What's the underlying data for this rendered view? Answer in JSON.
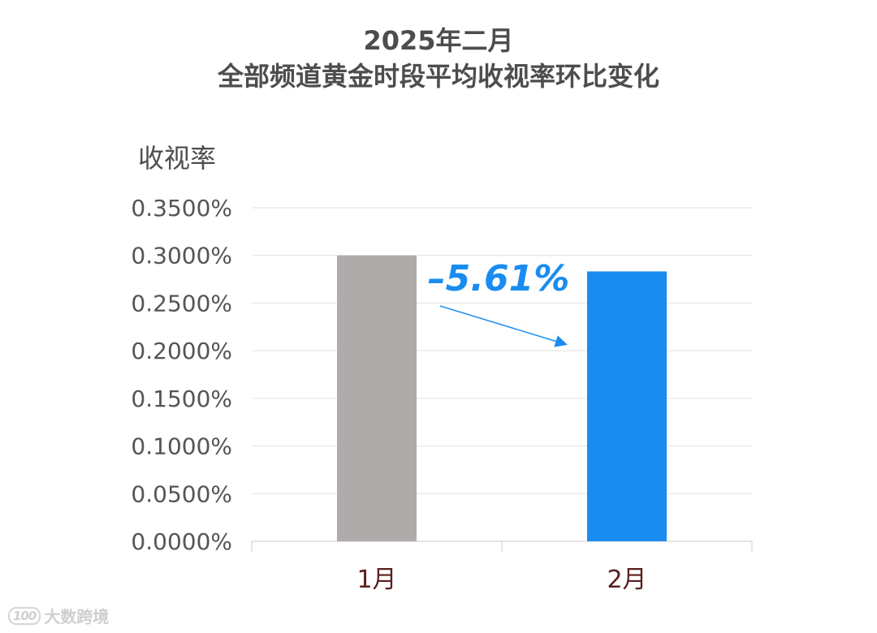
{
  "chart_data": {
    "type": "bar",
    "title": "2025年二月",
    "subtitle": "全部频道黄金时段平均收视率环比变化",
    "ylabel": "收视率",
    "xlabel": "",
    "categories": [
      "1月",
      "2月"
    ],
    "values": [
      0.3,
      0.2832
    ],
    "ylim": [
      0,
      0.35
    ],
    "yticks": [
      "0.0000%",
      "0.0500%",
      "0.1000%",
      "0.1500%",
      "0.2000%",
      "0.2500%",
      "0.3000%",
      "0.3500%"
    ],
    "grid": true,
    "bar_colors": [
      "#b0abab",
      "#1a8cf0"
    ],
    "annotation": {
      "text": "–5.61%",
      "color": "#1a8cf0"
    }
  },
  "watermark": {
    "logo": "100",
    "text": "大数跨境"
  }
}
